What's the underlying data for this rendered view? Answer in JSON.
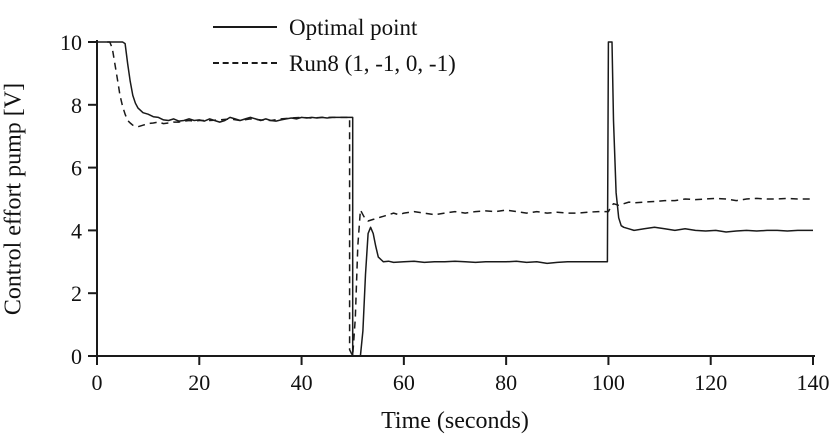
{
  "figure": {
    "background": "#ffffff",
    "axis_color": "#1a1a1a",
    "line_color": "#1a1a1a"
  },
  "chart_data": {
    "type": "line",
    "title": "",
    "xlabel": "Time (seconds)",
    "ylabel": "Control effort pump  [V]",
    "xlim": [
      0,
      140
    ],
    "ylim": [
      0,
      10
    ],
    "xticks": [
      0,
      20,
      40,
      60,
      80,
      100,
      120,
      140
    ],
    "yticks": [
      0,
      2,
      4,
      6,
      8,
      10
    ],
    "grid": false,
    "legend_position": "top-center",
    "series": [
      {
        "name": "Optimal point",
        "style": "solid",
        "color": "#1a1a1a",
        "points": [
          [
            0,
            10
          ],
          [
            2,
            10
          ],
          [
            4,
            10
          ],
          [
            5,
            10
          ],
          [
            5.5,
            9.95
          ],
          [
            6,
            9.3
          ],
          [
            6.5,
            8.75
          ],
          [
            7,
            8.3
          ],
          [
            7.5,
            8.05
          ],
          [
            8,
            7.9
          ],
          [
            9,
            7.75
          ],
          [
            10,
            7.7
          ],
          [
            11,
            7.62
          ],
          [
            12,
            7.6
          ],
          [
            13,
            7.52
          ],
          [
            14,
            7.5
          ],
          [
            15,
            7.55
          ],
          [
            16,
            7.48
          ],
          [
            17,
            7.5
          ],
          [
            18,
            7.55
          ],
          [
            19,
            7.5
          ],
          [
            20,
            7.52
          ],
          [
            21,
            7.48
          ],
          [
            22,
            7.55
          ],
          [
            23,
            7.5
          ],
          [
            24,
            7.45
          ],
          [
            25,
            7.5
          ],
          [
            26,
            7.6
          ],
          [
            27,
            7.55
          ],
          [
            28,
            7.5
          ],
          [
            29,
            7.55
          ],
          [
            30,
            7.6
          ],
          [
            31,
            7.55
          ],
          [
            32,
            7.5
          ],
          [
            33,
            7.55
          ],
          [
            34,
            7.5
          ],
          [
            35,
            7.48
          ],
          [
            36,
            7.52
          ],
          [
            37,
            7.55
          ],
          [
            38,
            7.58
          ],
          [
            39,
            7.55
          ],
          [
            40,
            7.6
          ],
          [
            41,
            7.58
          ],
          [
            42,
            7.6
          ],
          [
            43,
            7.58
          ],
          [
            44,
            7.6
          ],
          [
            45,
            7.58
          ],
          [
            46,
            7.6
          ],
          [
            47,
            7.6
          ],
          [
            48,
            7.6
          ],
          [
            49,
            7.6
          ],
          [
            50,
            7.6
          ],
          [
            50,
            0
          ],
          [
            51.5,
            0
          ],
          [
            52,
            0.8
          ],
          [
            52.5,
            2.6
          ],
          [
            53,
            3.9
          ],
          [
            53.5,
            4.1
          ],
          [
            54,
            3.9
          ],
          [
            54.5,
            3.5
          ],
          [
            55,
            3.15
          ],
          [
            56,
            3.0
          ],
          [
            57,
            3.02
          ],
          [
            58,
            2.98
          ],
          [
            60,
            3.0
          ],
          [
            62,
            3.02
          ],
          [
            64,
            2.98
          ],
          [
            66,
            3.0
          ],
          [
            68,
            3.0
          ],
          [
            70,
            3.02
          ],
          [
            72,
            3.0
          ],
          [
            74,
            2.98
          ],
          [
            76,
            3.0
          ],
          [
            78,
            3.0
          ],
          [
            80,
            3.0
          ],
          [
            82,
            3.02
          ],
          [
            84,
            2.98
          ],
          [
            86,
            3.0
          ],
          [
            88,
            2.95
          ],
          [
            90,
            2.98
          ],
          [
            92,
            3.0
          ],
          [
            94,
            3.0
          ],
          [
            96,
            3.0
          ],
          [
            98,
            3.0
          ],
          [
            99.8,
            3.0
          ],
          [
            100,
            10
          ],
          [
            100.7,
            10
          ],
          [
            101,
            7.5
          ],
          [
            101.5,
            5.2
          ],
          [
            102,
            4.4
          ],
          [
            102.5,
            4.15
          ],
          [
            103,
            4.1
          ],
          [
            104,
            4.05
          ],
          [
            105,
            4.0
          ],
          [
            107,
            4.05
          ],
          [
            109,
            4.1
          ],
          [
            111,
            4.05
          ],
          [
            113,
            4.0
          ],
          [
            115,
            4.05
          ],
          [
            117,
            4.0
          ],
          [
            119,
            3.98
          ],
          [
            121,
            4.0
          ],
          [
            123,
            3.95
          ],
          [
            125,
            3.98
          ],
          [
            127,
            4.0
          ],
          [
            129,
            3.98
          ],
          [
            131,
            4.0
          ],
          [
            133,
            4.0
          ],
          [
            135,
            3.98
          ],
          [
            137,
            4.0
          ],
          [
            139,
            4.0
          ],
          [
            140,
            4.0
          ]
        ]
      },
      {
        "name": "Run8 (1, -1, 0, -1)",
        "style": "dashed",
        "color": "#1a1a1a",
        "points": [
          [
            2,
            10
          ],
          [
            2.5,
            10
          ],
          [
            3,
            9.8
          ],
          [
            3.5,
            9.3
          ],
          [
            4,
            8.8
          ],
          [
            4.5,
            8.3
          ],
          [
            5,
            7.95
          ],
          [
            5.5,
            7.7
          ],
          [
            6,
            7.5
          ],
          [
            6.5,
            7.42
          ],
          [
            7,
            7.35
          ],
          [
            8,
            7.3
          ],
          [
            9,
            7.35
          ],
          [
            10,
            7.4
          ],
          [
            11,
            7.42
          ],
          [
            12,
            7.45
          ],
          [
            13,
            7.4
          ],
          [
            14,
            7.42
          ],
          [
            15,
            7.45
          ],
          [
            16,
            7.45
          ],
          [
            17,
            7.48
          ],
          [
            18,
            7.5
          ],
          [
            19,
            7.48
          ],
          [
            20,
            7.5
          ],
          [
            22,
            7.5
          ],
          [
            24,
            7.52
          ],
          [
            26,
            7.55
          ],
          [
            28,
            7.5
          ],
          [
            30,
            7.55
          ],
          [
            32,
            7.52
          ],
          [
            34,
            7.5
          ],
          [
            36,
            7.55
          ],
          [
            38,
            7.58
          ],
          [
            40,
            7.6
          ],
          [
            42,
            7.58
          ],
          [
            44,
            7.6
          ],
          [
            46,
            7.6
          ],
          [
            48,
            7.6
          ],
          [
            49.4,
            7.6
          ],
          [
            49.4,
            0.2
          ],
          [
            50,
            0
          ],
          [
            50.5,
            1.2
          ],
          [
            51,
            3.5
          ],
          [
            51.5,
            4.65
          ],
          [
            52,
            4.5
          ],
          [
            52.5,
            4.35
          ],
          [
            53,
            4.3
          ],
          [
            54,
            4.35
          ],
          [
            55,
            4.4
          ],
          [
            56,
            4.45
          ],
          [
            57,
            4.5
          ],
          [
            58,
            4.55
          ],
          [
            59,
            4.5
          ],
          [
            60,
            4.55
          ],
          [
            62,
            4.6
          ],
          [
            64,
            4.55
          ],
          [
            66,
            4.5
          ],
          [
            68,
            4.55
          ],
          [
            70,
            4.6
          ],
          [
            72,
            4.55
          ],
          [
            74,
            4.6
          ],
          [
            76,
            4.62
          ],
          [
            78,
            4.6
          ],
          [
            80,
            4.65
          ],
          [
            82,
            4.6
          ],
          [
            84,
            4.55
          ],
          [
            86,
            4.6
          ],
          [
            88,
            4.55
          ],
          [
            90,
            4.58
          ],
          [
            92,
            4.55
          ],
          [
            94,
            4.55
          ],
          [
            96,
            4.58
          ],
          [
            98,
            4.6
          ],
          [
            100,
            4.6
          ],
          [
            100.5,
            4.75
          ],
          [
            101,
            4.85
          ],
          [
            102,
            4.8
          ],
          [
            103,
            4.85
          ],
          [
            104,
            4.9
          ],
          [
            105,
            4.88
          ],
          [
            107,
            4.9
          ],
          [
            109,
            4.92
          ],
          [
            111,
            4.95
          ],
          [
            113,
            4.95
          ],
          [
            115,
            5.0
          ],
          [
            117,
            4.98
          ],
          [
            119,
            5.0
          ],
          [
            121,
            5.02
          ],
          [
            123,
            5.0
          ],
          [
            125,
            4.95
          ],
          [
            127,
            5.0
          ],
          [
            129,
            5.02
          ],
          [
            131,
            5.0
          ],
          [
            133,
            5.0
          ],
          [
            135,
            5.02
          ],
          [
            137,
            5.0
          ],
          [
            139,
            5.0
          ],
          [
            140,
            5.0
          ]
        ]
      }
    ]
  }
}
